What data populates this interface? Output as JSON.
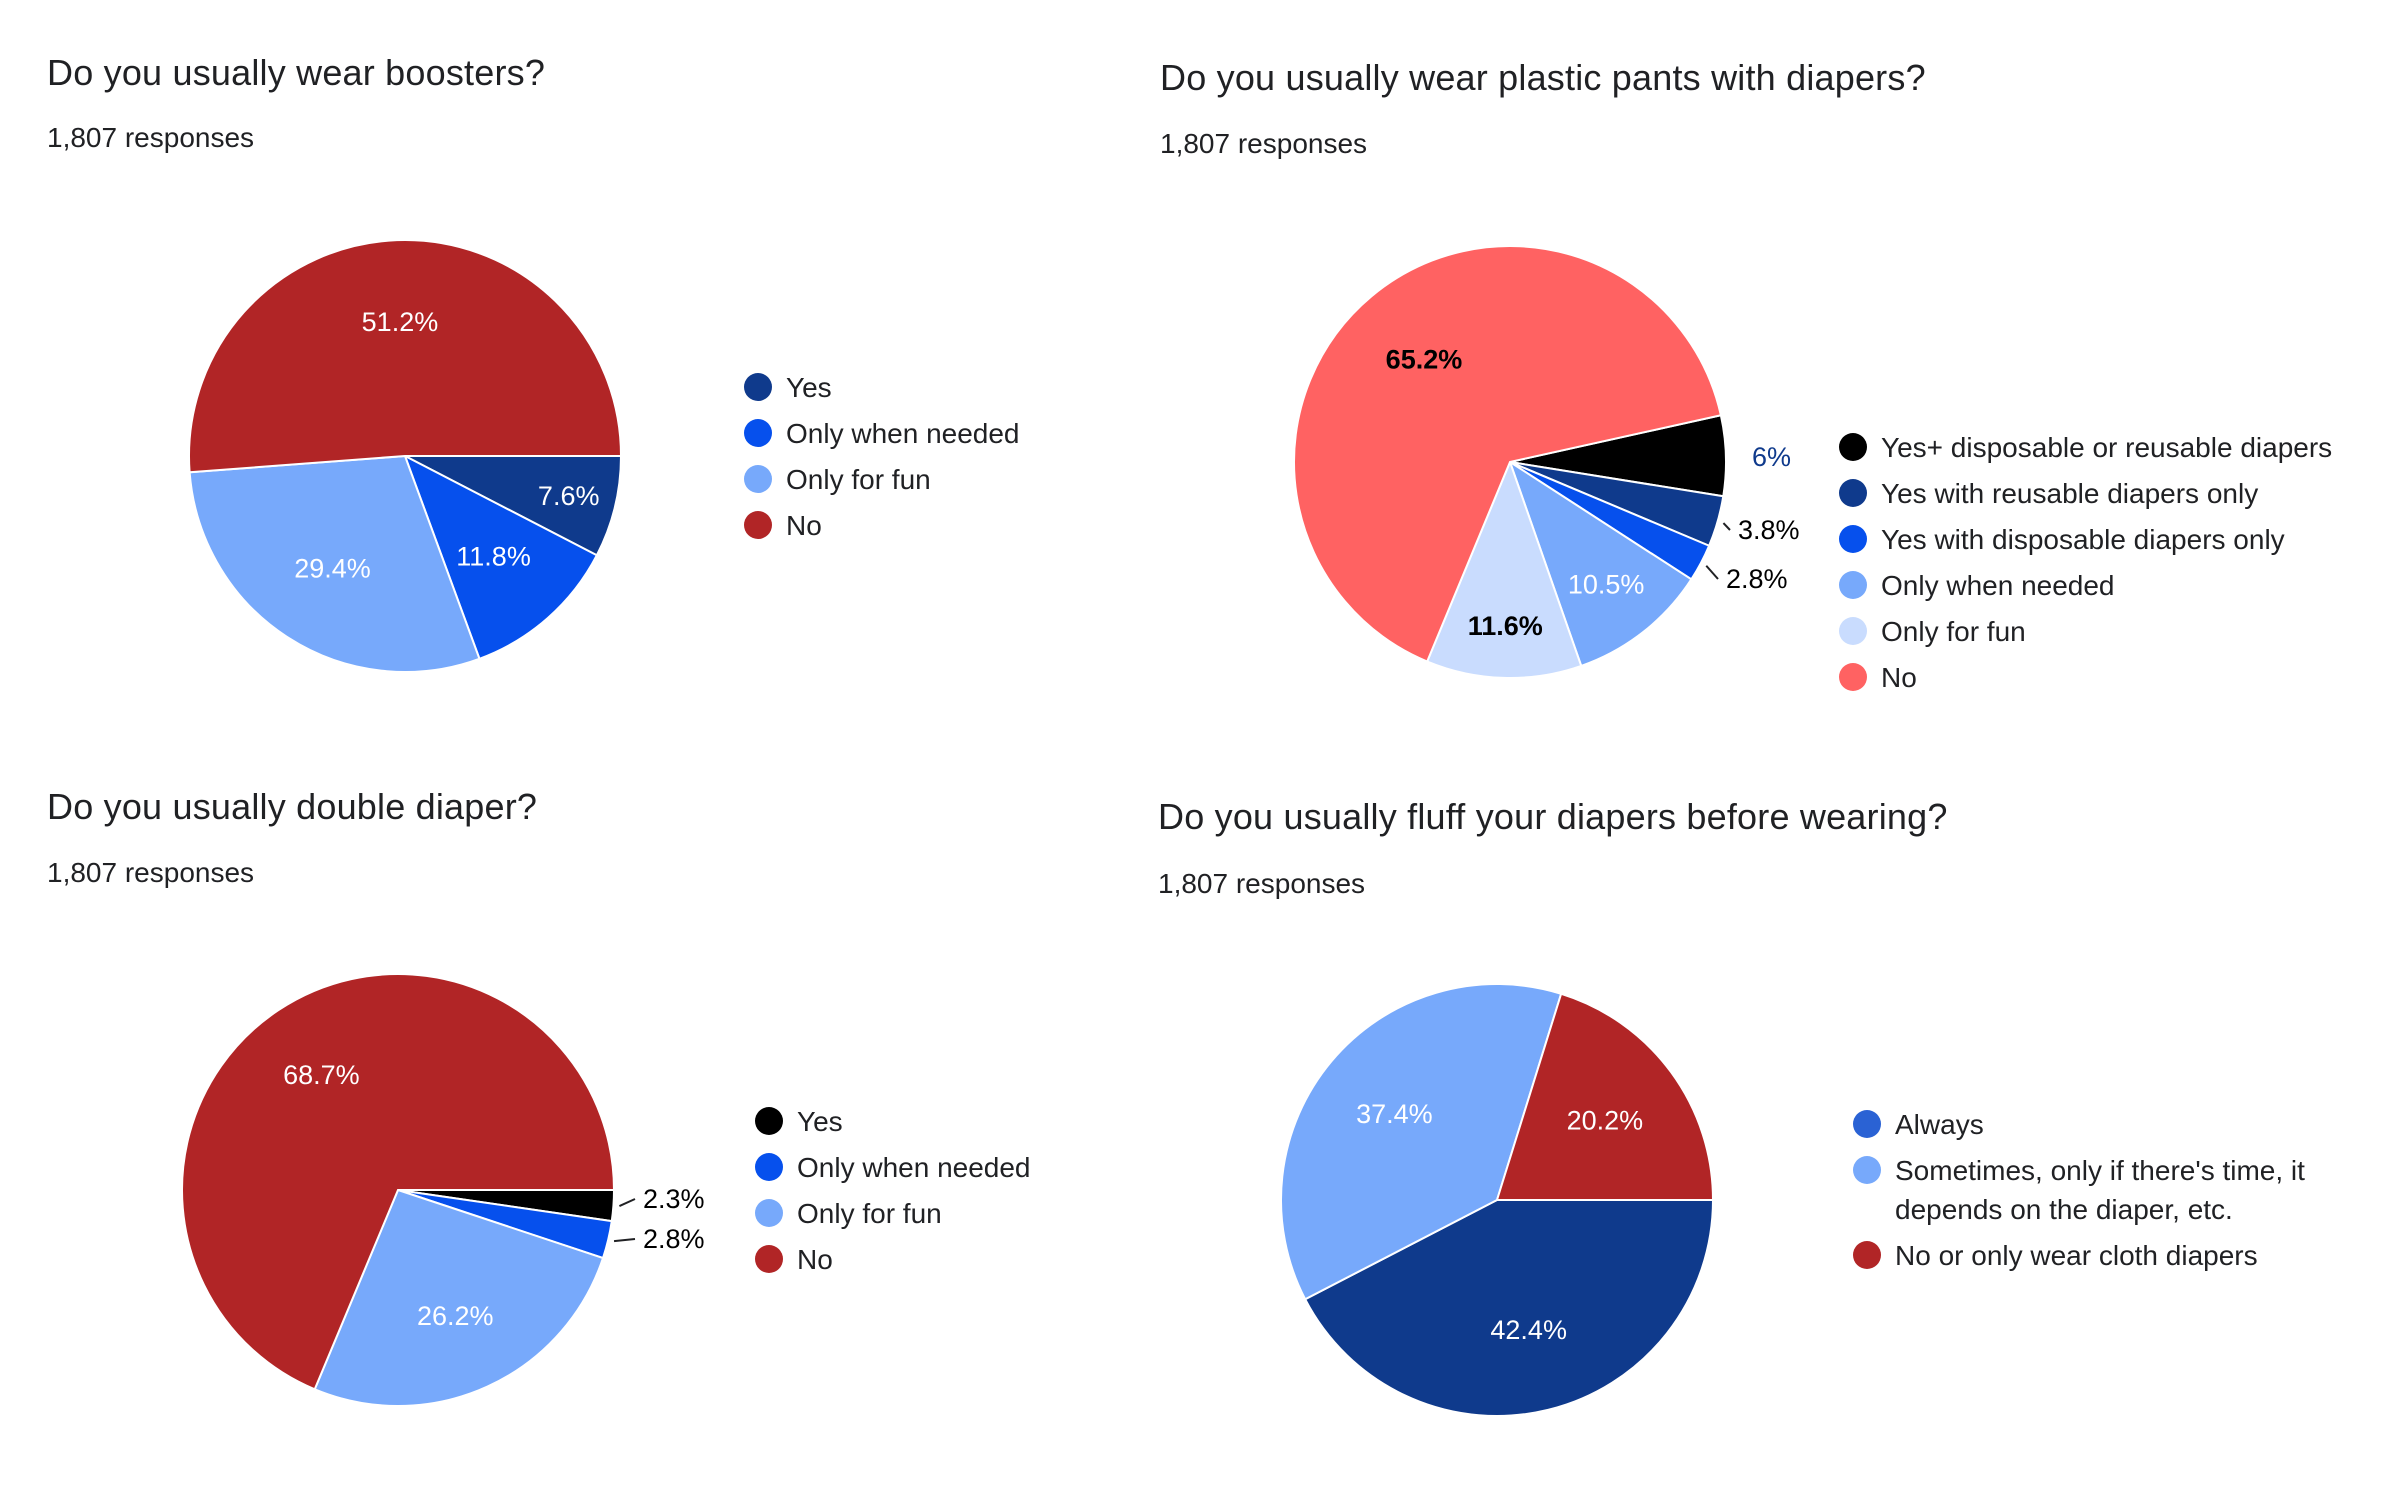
{
  "chart_data": [
    {
      "type": "pie",
      "title": "Do you usually wear boosters?",
      "subtitle": "1,807 responses",
      "categories": [
        "Yes",
        "Only when needed",
        "Only for fun",
        "No"
      ],
      "values": [
        7.6,
        11.8,
        29.4,
        51.2
      ],
      "labels": [
        "7.6%",
        "11.8%",
        "29.4%",
        "51.2%"
      ],
      "colors": [
        "#0f3a8c",
        "#0650ed",
        "#77a9fb",
        "#b12526"
      ],
      "legend_position": "right"
    },
    {
      "type": "pie",
      "title": "Do you usually wear plastic pants with diapers?",
      "subtitle": "1,807 responses",
      "categories": [
        "Yes+ disposable or reusable diapers",
        "Yes with reusable diapers only",
        "Yes with disposable diapers only",
        "Only when needed",
        "Only for fun",
        "No"
      ],
      "values": [
        6.0,
        3.8,
        2.8,
        10.5,
        11.6,
        65.2
      ],
      "labels": [
        "6%",
        "3.8%",
        "2.8%",
        "10.5%",
        "11.6%",
        "65.2%"
      ],
      "colors": [
        "#000000",
        "#0f3a8c",
        "#0650ed",
        "#77a9fb",
        "#c9dcfe",
        "#ff6262"
      ],
      "legend_position": "right"
    },
    {
      "type": "pie",
      "title": "Do you usually double diaper?",
      "subtitle": "1,807 responses",
      "categories": [
        "Yes",
        "Only when needed",
        "Only for fun",
        "No"
      ],
      "values": [
        2.3,
        2.8,
        26.2,
        68.7
      ],
      "labels": [
        "2.3%",
        "2.8%",
        "26.2%",
        "68.7%"
      ],
      "colors": [
        "#000000",
        "#0650ed",
        "#77a9fb",
        "#b12526"
      ],
      "legend_position": "right"
    },
    {
      "type": "pie",
      "title": "Do you usually fluff your diapers before wearing?",
      "subtitle": "1,807 responses",
      "categories": [
        "Always",
        "Sometimes, only if there's time, it depends on the diaper, etc.",
        "No or only wear cloth diapers"
      ],
      "values": [
        42.4,
        37.4,
        20.2
      ],
      "labels": [
        "42.4%",
        "37.4%",
        "20.2%"
      ],
      "colors": [
        "#0f3a8c",
        "#77a9fb",
        "#b12526"
      ],
      "legend_colors": [
        "#2a62d4",
        "#77a9fb",
        "#b12526"
      ],
      "legend_position": "right"
    }
  ]
}
